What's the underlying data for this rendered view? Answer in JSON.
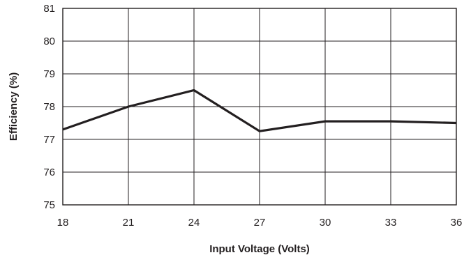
{
  "chart_data": {
    "type": "line",
    "xlabel": "Input Voltage (Volts)",
    "ylabel": "Efficiency (%)",
    "xlim": [
      18,
      36
    ],
    "ylim": [
      75,
      81
    ],
    "x_ticks": [
      18,
      21,
      24,
      27,
      30,
      33,
      36
    ],
    "y_ticks": [
      75,
      76,
      77,
      78,
      79,
      80,
      81
    ],
    "grid": true,
    "legend": "none",
    "series": [
      {
        "x": [
          18,
          21,
          24,
          27,
          30,
          33,
          36
        ],
        "values": [
          77.3,
          78.0,
          78.5,
          77.25,
          77.55,
          77.55,
          77.5
        ],
        "color": "#231f20"
      }
    ]
  }
}
